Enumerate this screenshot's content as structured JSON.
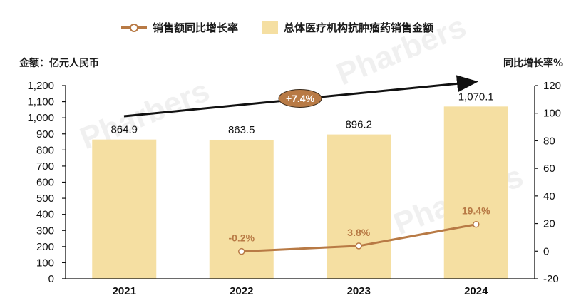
{
  "legend": {
    "line_label": "销售额同比增长率",
    "bar_label": "总体医疗机构抗肿瘤药销售金额"
  },
  "axes": {
    "left_title": "金额：亿元人民币",
    "right_title": "同比增长率%"
  },
  "cagr": {
    "label": "+7.4%",
    "color": "#b87a45"
  },
  "colors": {
    "bar": "#f5dfa2",
    "line": "#b87a45",
    "growth_label": "#b87a45",
    "axis": "#111111"
  },
  "watermark": "Pharbers",
  "chart_data": {
    "type": "bar+line",
    "title": "",
    "categories": [
      "2021",
      "2022",
      "2023",
      "2024"
    ],
    "series": [
      {
        "name": "总体医疗机构抗肿瘤药销售金额",
        "type": "bar",
        "axis": "left",
        "values": [
          864.9,
          863.5,
          896.2,
          1070.1
        ],
        "labels": [
          "864.9",
          "863.5",
          "896.2",
          "1,070.1"
        ]
      },
      {
        "name": "销售额同比增长率",
        "type": "line",
        "axis": "right",
        "values": [
          null,
          -0.2,
          3.8,
          19.4
        ],
        "labels": [
          "",
          "-0.2%",
          "3.8%",
          "19.4%"
        ]
      }
    ],
    "ylabel": "金额：亿元人民币",
    "ylabel_right": "同比增长率%",
    "ylim": [
      0,
      1200
    ],
    "yticks": [
      0,
      100,
      200,
      300,
      400,
      500,
      600,
      700,
      800,
      900,
      1000,
      1100,
      1200
    ],
    "ytick_labels": [
      "0",
      "100",
      "200",
      "300",
      "400",
      "500",
      "600",
      "700",
      "800",
      "900",
      "1,000",
      "1,100",
      "1,200"
    ],
    "ylim_right": [
      -20,
      120
    ],
    "yticks_right": [
      -20,
      0,
      20,
      40,
      60,
      80,
      100,
      120
    ],
    "annotations": [
      {
        "type": "arrow",
        "from": "2021",
        "to": "2024",
        "label": "+7.4%",
        "meaning": "CAGR"
      }
    ],
    "grid": false,
    "legend_position": "top"
  }
}
